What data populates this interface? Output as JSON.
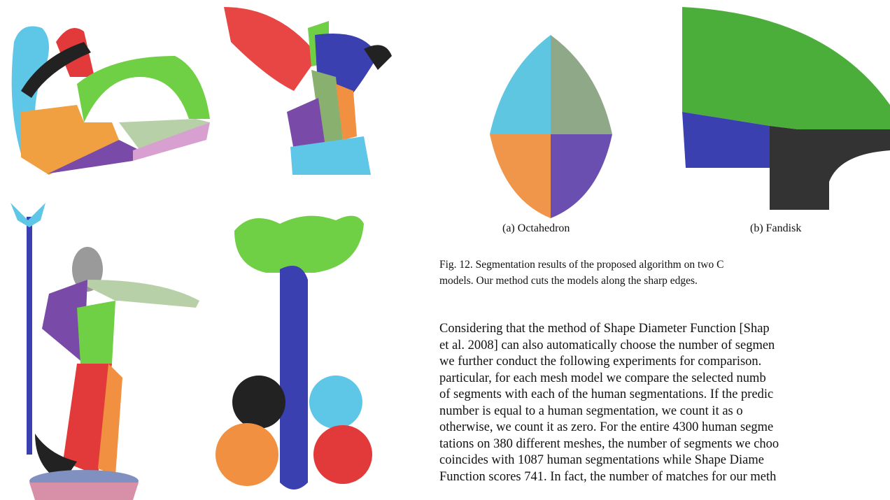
{
  "figure": {
    "subcaptions": [
      "(a) Octahedron",
      "(b) Fandisk"
    ],
    "caption": [
      "Fig. 12.   Segmentation results of the proposed algorithm on two C",
      "models. Our method cuts the models along the sharp edges."
    ]
  },
  "body": {
    "lines": [
      "Considering that the method of Shape Diameter Function [Shap",
      "et al. 2008] can also automatically choose the number of segmen",
      "we further conduct the following experiments for comparison.",
      "particular, for each mesh model we compare the selected numb",
      "of segments with each of the human segmentations. If the predic",
      "number is equal to a human segmentation, we count it as o",
      "otherwise, we count it as zero. For the entire 4300 human segme",
      "tations on 380 different meshes, the number of segments we choo",
      "coincides with 1087 human segmentations while Shape Diame",
      "Function scores 741. In fact, the number of matches for our meth"
    ]
  }
}
